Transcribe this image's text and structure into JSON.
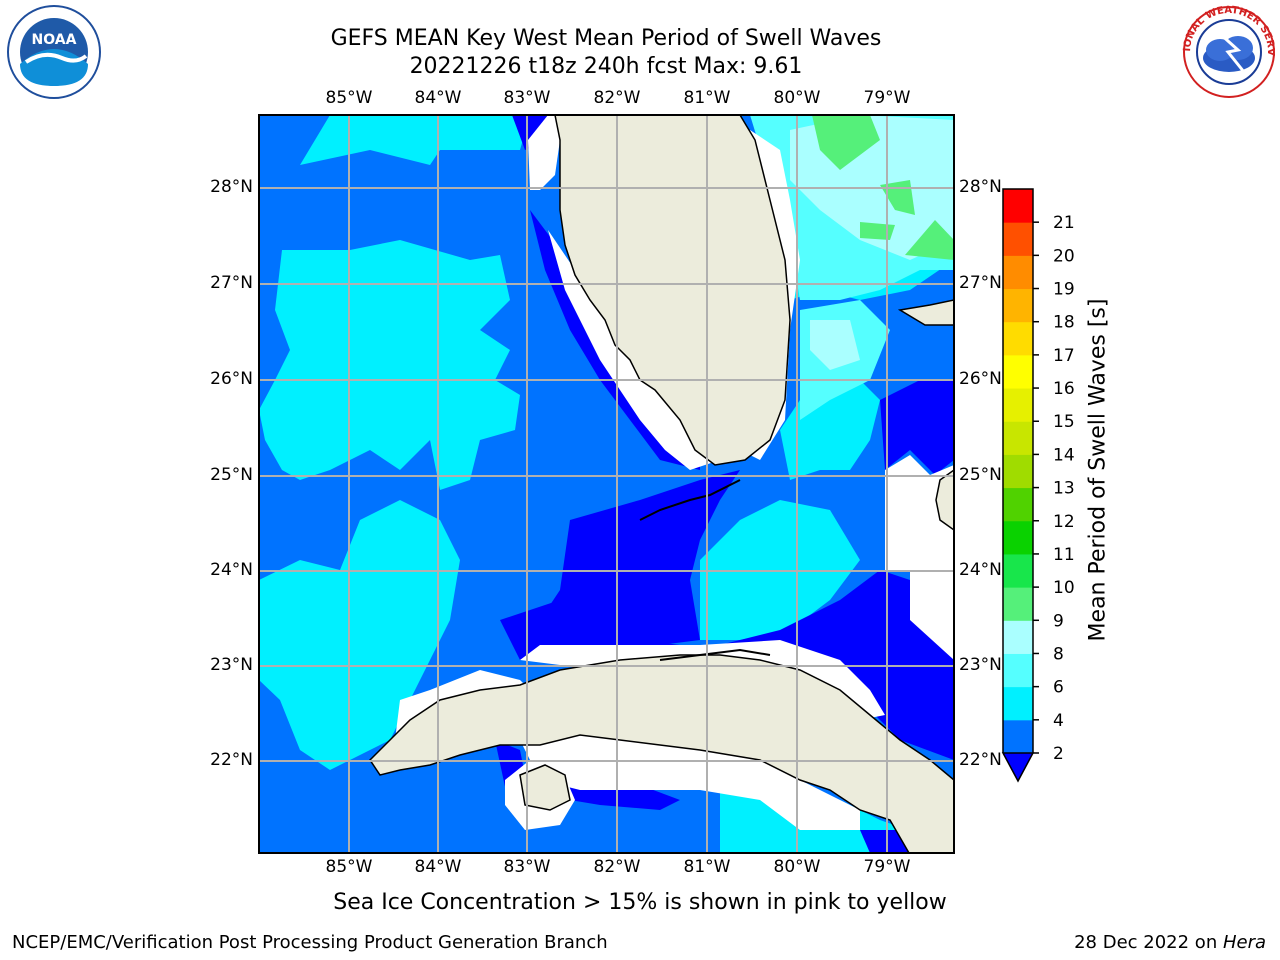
{
  "header": {
    "title_line1": "GEFS MEAN Key West Mean Period of Swell Waves",
    "title_line2": "20221226 t18z 240h fcst   Max: 9.61"
  },
  "logos": {
    "left": {
      "icon": "noaa-logo",
      "text": "NOAA"
    },
    "right": {
      "icon": "national-weather-service-logo",
      "text": "NATIONAL WEATHER SERVICE"
    }
  },
  "map": {
    "lon_labels": [
      "85°W",
      "84°W",
      "83°W",
      "82°W",
      "81°W",
      "80°W",
      "79°W"
    ],
    "lat_labels": [
      "28°N",
      "27°N",
      "26°N",
      "25°N",
      "24°N",
      "23°N",
      "22°N"
    ],
    "land_color": "#ececdc",
    "grid_color": "#b0b0b0"
  },
  "colorbar": {
    "label": "Mean Period of Swell Waves [s]",
    "ticks": [
      "2",
      "4",
      "6",
      "8",
      "9",
      "10",
      "11",
      "12",
      "13",
      "14",
      "15",
      "16",
      "17",
      "18",
      "19",
      "20",
      "21"
    ],
    "colors": [
      "#0073ff",
      "#00f0ff",
      "#55ffff",
      "#aaffff",
      "#55f07a",
      "#18e64b",
      "#0ad200",
      "#50d200",
      "#a0dc00",
      "#c8e600",
      "#e6f000",
      "#ffff00",
      "#ffdc00",
      "#ffb400",
      "#ff8c00",
      "#ff5000",
      "#ff0000"
    ],
    "under_color": "#0000ff"
  },
  "footer": {
    "note": "Sea Ice Concentration > 15% is shown in pink to yellow",
    "credit_left": "NCEP/EMC/Verification Post Processing Product Generation Branch",
    "credit_right_prefix": "28 Dec 2022 on ",
    "credit_right_host": "Hera"
  }
}
